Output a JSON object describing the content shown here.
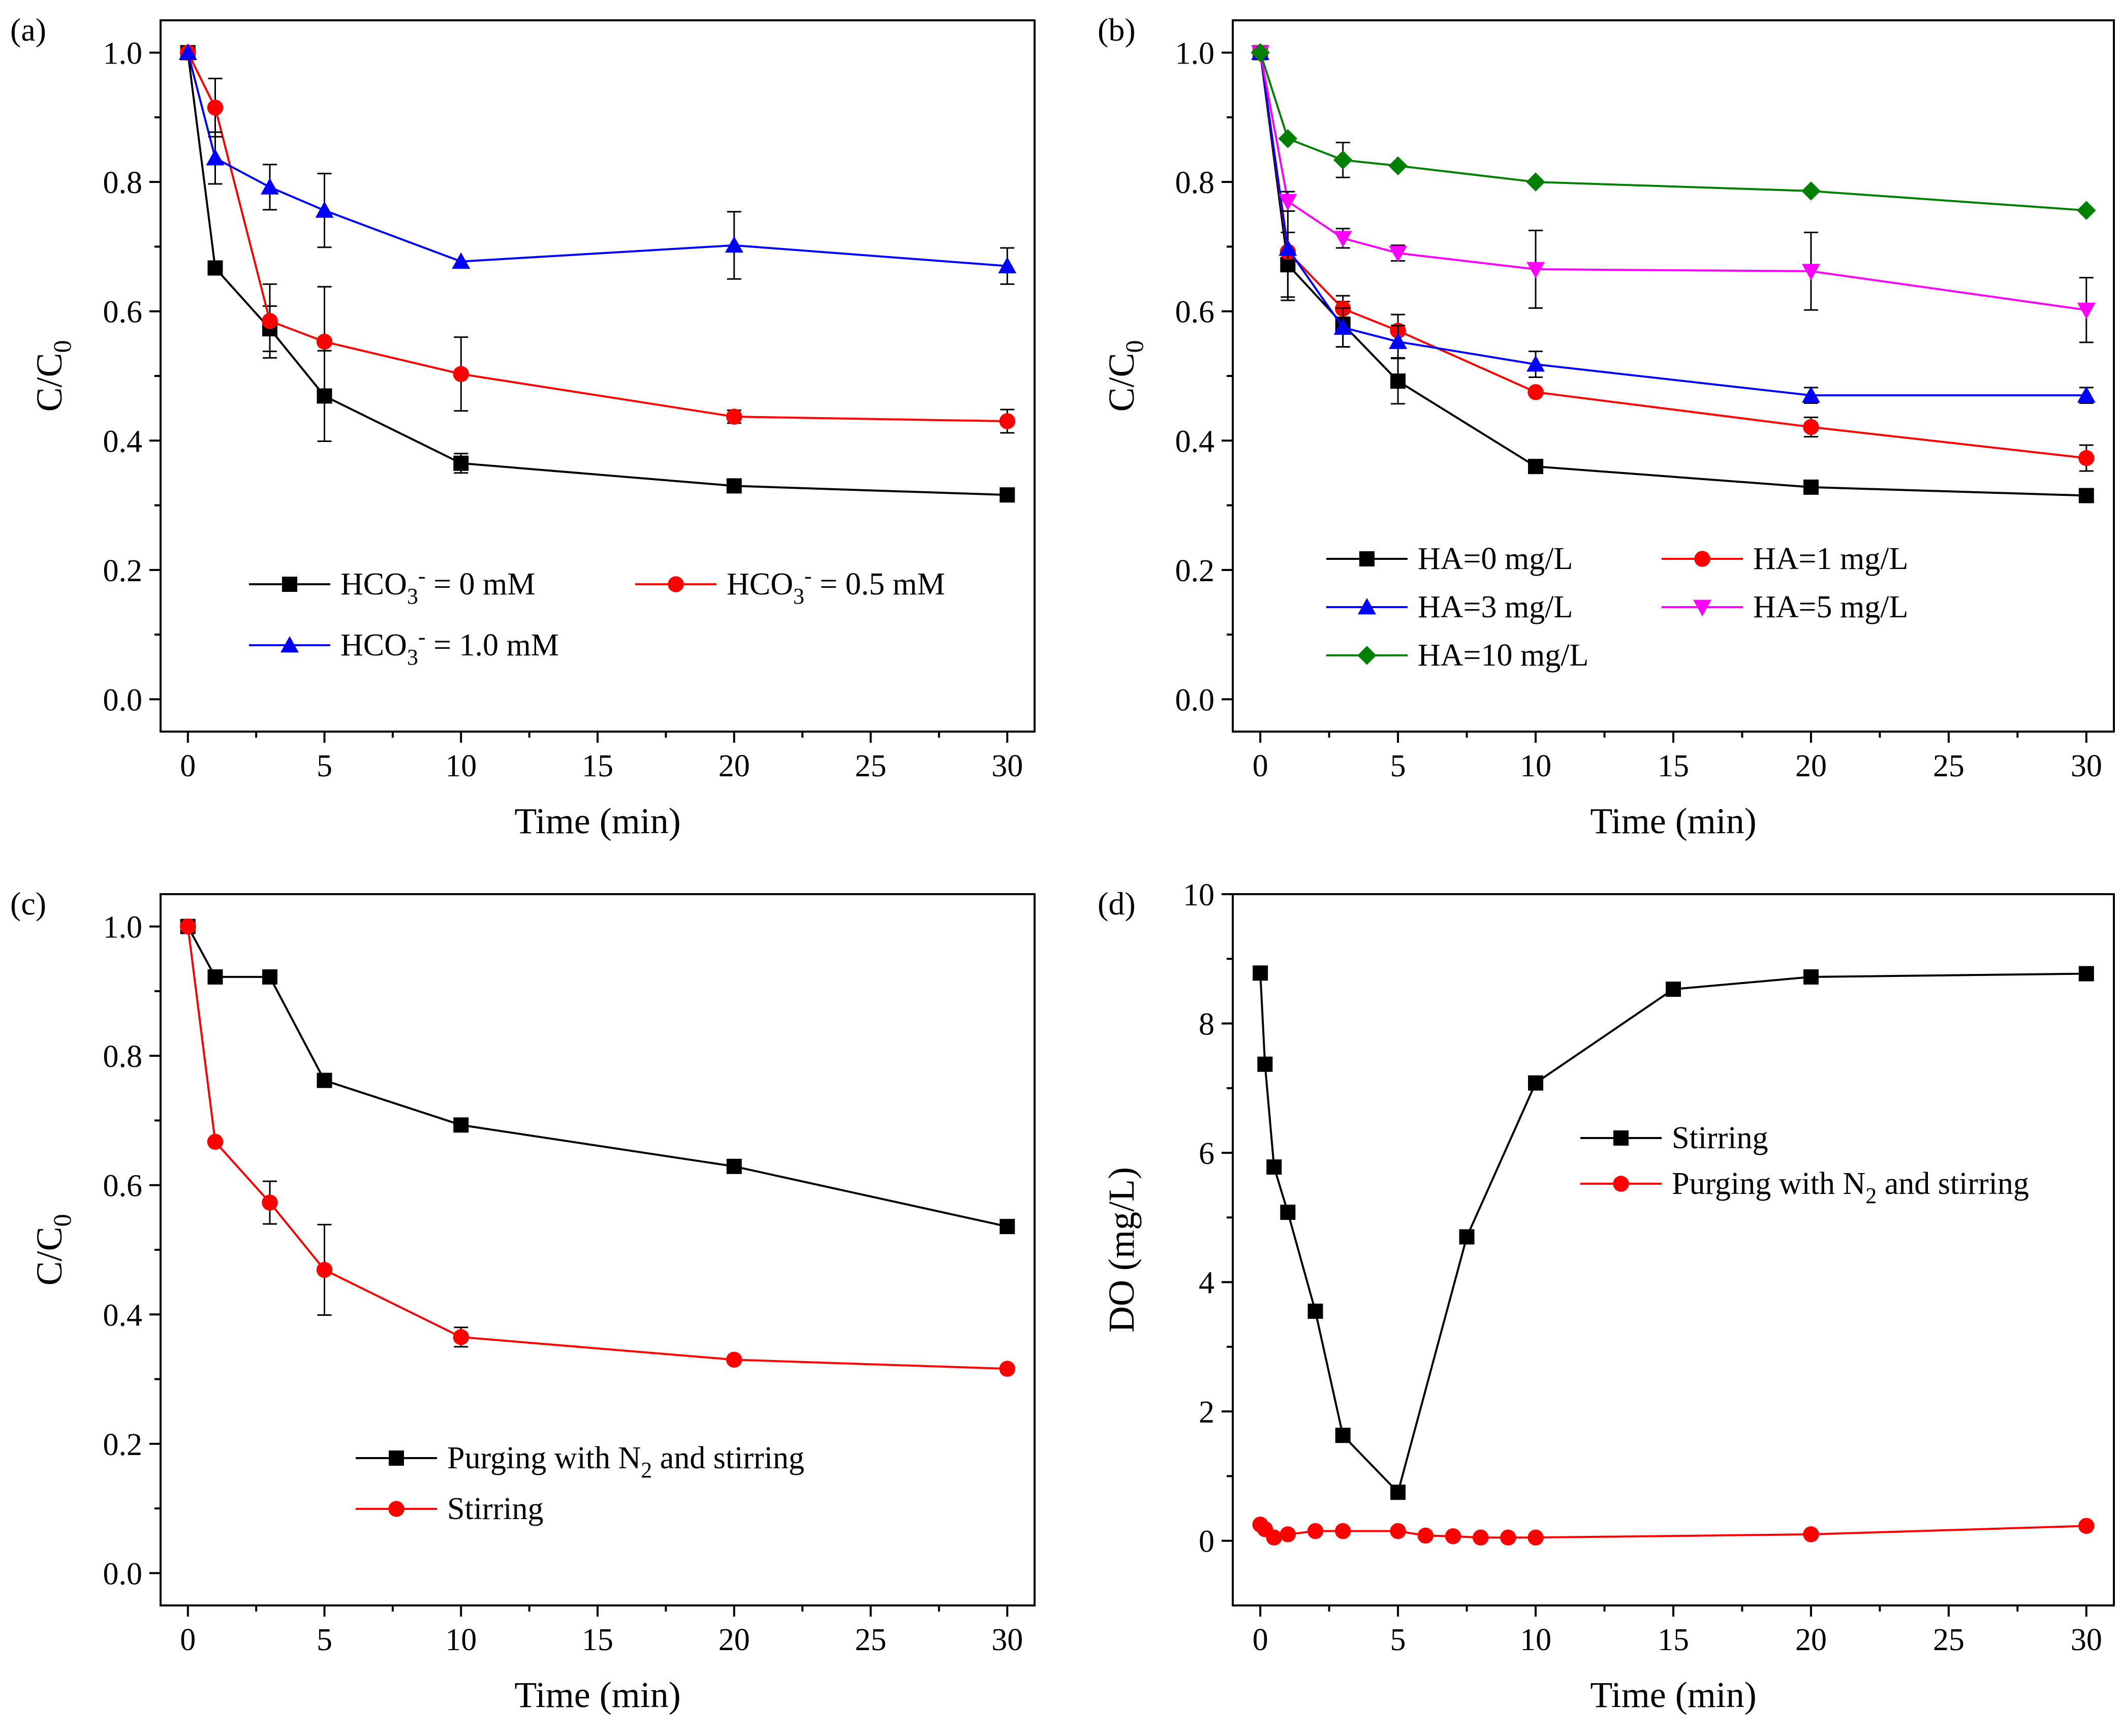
{
  "figure": {
    "background": "#ffffff"
  },
  "chart_data": [
    {
      "id": "a",
      "type": "line",
      "panel_label": "(a)",
      "xlabel": "Time (min)",
      "ylabel": "C/C0",
      "ylabel_main": "C/C",
      "ylabel_sub": "0",
      "xlim": [
        -1,
        31
      ],
      "ylim": [
        -0.05,
        1.05
      ],
      "xticks": [
        0,
        5,
        10,
        15,
        20,
        25,
        30
      ],
      "yticks": [
        0.0,
        0.2,
        0.4,
        0.6,
        0.8,
        1.0
      ],
      "ytick_labels": [
        "0.0",
        "0.2",
        "0.4",
        "0.6",
        "0.8",
        "1.0"
      ],
      "legend_position": "lower-center",
      "series": [
        {
          "name": "HCO3- = 0 mM",
          "label_parts": [
            "HCO",
            "3",
            "-",
            " =   0  mM"
          ],
          "color": "#000000",
          "marker": "square",
          "x": [
            0,
            1,
            3,
            5,
            10,
            20,
            30
          ],
          "y": [
            1.0,
            0.667,
            0.573,
            0.469,
            0.365,
            0.33,
            0.316
          ],
          "err": [
            0,
            0,
            0.035,
            0.07,
            0.015,
            0,
            0
          ]
        },
        {
          "name": "HCO3- = 0.5 mM",
          "label_parts": [
            "HCO",
            "3",
            "-",
            " = 0.5 mM"
          ],
          "color": "#ff0000",
          "marker": "circle",
          "x": [
            0,
            1,
            3,
            5,
            10,
            20,
            30
          ],
          "y": [
            1.0,
            0.915,
            0.585,
            0.553,
            0.503,
            0.437,
            0.43
          ],
          "err": [
            0,
            0.045,
            0.057,
            0.085,
            0.057,
            0.01,
            0.018
          ]
        },
        {
          "name": "HCO3- = 1.0 mM",
          "label_parts": [
            "HCO",
            "3",
            "-",
            " = 1.0 mM"
          ],
          "color": "#0000ff",
          "marker": "triangle-up",
          "x": [
            0,
            1,
            3,
            5,
            10,
            20,
            30
          ],
          "y": [
            1.0,
            0.837,
            0.792,
            0.756,
            0.677,
            0.702,
            0.67
          ],
          "err": [
            0,
            0.04,
            0.035,
            0.057,
            0,
            0.052,
            0.028
          ]
        }
      ]
    },
    {
      "id": "b",
      "type": "line",
      "panel_label": "(b)",
      "xlabel": "Time (min)",
      "ylabel": "C/C0",
      "ylabel_main": "C/C",
      "ylabel_sub": "0",
      "xlim": [
        -1,
        31
      ],
      "ylim": [
        -0.05,
        1.05
      ],
      "xticks": [
        0,
        5,
        10,
        15,
        20,
        25,
        30
      ],
      "yticks": [
        0.0,
        0.2,
        0.4,
        0.6,
        0.8,
        1.0
      ],
      "ytick_labels": [
        "0.0",
        "0.2",
        "0.4",
        "0.6",
        "0.8",
        "1.0"
      ],
      "legend_position": "lower-left",
      "series": [
        {
          "name": "HA=0 mg/L",
          "label_parts": [
            "HA=0 mg/L"
          ],
          "color": "#000000",
          "marker": "square",
          "x": [
            0,
            1,
            3,
            5,
            10,
            20,
            30
          ],
          "y": [
            1.0,
            0.672,
            0.58,
            0.492,
            0.36,
            0.328,
            0.315
          ],
          "err": [
            0,
            0.05,
            0.035,
            0.035,
            0,
            0,
            0
          ]
        },
        {
          "name": "HA=1 mg/L",
          "label_parts": [
            "HA=1 mg/L"
          ],
          "color": "#ff0000",
          "marker": "circle",
          "x": [
            0,
            1,
            3,
            5,
            10,
            20,
            30
          ],
          "y": [
            1.0,
            0.692,
            0.604,
            0.57,
            0.475,
            0.421,
            0.373
          ],
          "err": [
            0,
            0,
            0.02,
            0.025,
            0,
            0.015,
            0.02
          ]
        },
        {
          "name": "HA=3 mg/L",
          "label_parts": [
            "HA=3 mg/L"
          ],
          "color": "#0000ff",
          "marker": "triangle-up",
          "x": [
            0,
            1,
            3,
            5,
            10,
            20,
            30
          ],
          "y": [
            1.0,
            0.697,
            0.575,
            0.553,
            0.518,
            0.47,
            0.47
          ],
          "err": [
            0,
            0.08,
            0.03,
            0.025,
            0.02,
            0.012,
            0.012
          ]
        },
        {
          "name": "HA=5 mg/L",
          "label_parts": [
            "HA=5 mg/L"
          ],
          "color": "#ff00ff",
          "marker": "triangle-down",
          "x": [
            0,
            1,
            3,
            5,
            10,
            20,
            30
          ],
          "y": [
            1.0,
            0.77,
            0.713,
            0.69,
            0.665,
            0.662,
            0.602
          ],
          "err": [
            0,
            0.015,
            0.015,
            0.012,
            0.06,
            0.06,
            0.05
          ]
        },
        {
          "name": "HA=10 mg/L",
          "label_parts": [
            "HA=10 mg/L"
          ],
          "color": "#008000",
          "marker": "diamond",
          "x": [
            0,
            1,
            3,
            5,
            10,
            20,
            30
          ],
          "y": [
            1.0,
            0.867,
            0.834,
            0.825,
            0.8,
            0.786,
            0.756
          ],
          "err": [
            0,
            0,
            0.027,
            0,
            0,
            0,
            0
          ]
        }
      ]
    },
    {
      "id": "c",
      "type": "line",
      "panel_label": "(c)",
      "xlabel": "Time (min)",
      "ylabel": "C/C0",
      "ylabel_main": "C/C",
      "ylabel_sub": "0",
      "xlim": [
        -1,
        31
      ],
      "ylim": [
        -0.05,
        1.05
      ],
      "xticks": [
        0,
        5,
        10,
        15,
        20,
        25,
        30
      ],
      "yticks": [
        0.0,
        0.2,
        0.4,
        0.6,
        0.8,
        1.0
      ],
      "ytick_labels": [
        "0.0",
        "0.2",
        "0.4",
        "0.6",
        "0.8",
        "1.0"
      ],
      "legend_position": "lower-center",
      "series": [
        {
          "name": "Purging with N2 and stirring",
          "label_parts": [
            "Purging with N",
            "2",
            "",
            " and stirring"
          ],
          "color": "#000000",
          "marker": "square",
          "x": [
            0,
            1,
            3,
            5,
            10,
            20,
            30
          ],
          "y": [
            1.0,
            0.922,
            0.922,
            0.762,
            0.693,
            0.629,
            0.536
          ],
          "err": [
            0,
            0,
            0,
            0,
            0,
            0,
            0
          ]
        },
        {
          "name": "Stirring",
          "label_parts": [
            "Stirring"
          ],
          "color": "#ff0000",
          "marker": "circle",
          "x": [
            0,
            1,
            3,
            5,
            10,
            20,
            30
          ],
          "y": [
            1.0,
            0.667,
            0.573,
            0.469,
            0.365,
            0.33,
            0.316
          ],
          "err": [
            0,
            0,
            0.033,
            0.07,
            0.015,
            0,
            0
          ]
        }
      ]
    },
    {
      "id": "d",
      "type": "line",
      "panel_label": "(d)",
      "xlabel": "Time (min)",
      "ylabel": "DO (mg/L)",
      "xlim": [
        -1,
        31
      ],
      "ylim": [
        -1,
        10
      ],
      "xticks": [
        0,
        5,
        10,
        15,
        20,
        25,
        30
      ],
      "yticks": [
        0,
        2,
        4,
        6,
        8,
        10
      ],
      "ytick_labels": [
        "0",
        "2",
        "4",
        "6",
        "8",
        "10"
      ],
      "legend_position": "right-middle",
      "series": [
        {
          "name": "Stirring",
          "label_parts": [
            "Stirring"
          ],
          "color": "#000000",
          "marker": "square",
          "x": [
            0,
            0.17,
            0.5,
            1,
            2,
            3,
            5,
            7.5,
            10,
            15,
            20,
            30
          ],
          "y": [
            8.78,
            7.37,
            5.78,
            5.08,
            3.55,
            1.63,
            0.75,
            4.7,
            7.08,
            8.53,
            8.72,
            8.77
          ],
          "err": [
            0,
            0,
            0,
            0,
            0,
            0,
            0,
            0,
            0,
            0,
            0,
            0
          ]
        },
        {
          "name": "Purging with N2 and stirring",
          "label_parts": [
            "Purging with N",
            "2",
            "",
            " and stirring"
          ],
          "color": "#ff0000",
          "marker": "circle",
          "x": [
            0,
            0.17,
            0.5,
            1,
            2,
            3,
            5,
            6,
            7,
            8,
            9,
            10,
            20,
            30
          ],
          "y": [
            0.25,
            0.18,
            0.05,
            0.1,
            0.15,
            0.15,
            0.15,
            0.08,
            0.07,
            0.05,
            0.05,
            0.05,
            0.1,
            0.23
          ],
          "err": [
            0,
            0,
            0,
            0,
            0,
            0,
            0,
            0,
            0,
            0,
            0,
            0,
            0,
            0
          ]
        }
      ]
    }
  ]
}
